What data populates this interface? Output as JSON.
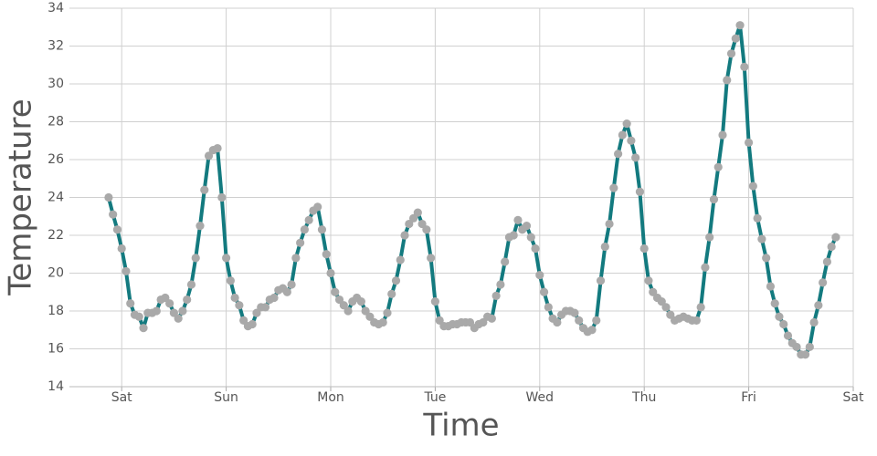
{
  "chart_data": {
    "type": "line",
    "xlabel": "Time",
    "ylabel": "Temperature",
    "x": [
      -3,
      -2,
      -1,
      0,
      1,
      2,
      3,
      4,
      5,
      6,
      7,
      8,
      9,
      10,
      11,
      12,
      13,
      14,
      15,
      16,
      17,
      18,
      19,
      20,
      21,
      22,
      23,
      24,
      25,
      26,
      27,
      28,
      29,
      30,
      31,
      32,
      33,
      34,
      35,
      36,
      37,
      38,
      39,
      40,
      41,
      42,
      43,
      44,
      45,
      46,
      47,
      48,
      49,
      50,
      51,
      52,
      53,
      54,
      55,
      56,
      57,
      58,
      59,
      60,
      61,
      62,
      63,
      64,
      65,
      66,
      67,
      68,
      69,
      70,
      71,
      72,
      73,
      74,
      75,
      76,
      77,
      78,
      79,
      80,
      81,
      82,
      83,
      84,
      85,
      86,
      87,
      88,
      89,
      90,
      91,
      92,
      93,
      94,
      95,
      96,
      97,
      98,
      99,
      100,
      101,
      102,
      103,
      104,
      105,
      106,
      107,
      108,
      109,
      110,
      111,
      112,
      113,
      114,
      115,
      116,
      117,
      118,
      119,
      120,
      121,
      122,
      123,
      124,
      125,
      126,
      127,
      128,
      129,
      130,
      131,
      132,
      133,
      134,
      135,
      136,
      137,
      138,
      139,
      140,
      141,
      142,
      143,
      144,
      145,
      146,
      147,
      148,
      149,
      150,
      151,
      152,
      153,
      154,
      155,
      156,
      157,
      158,
      159,
      160,
      161,
      162,
      163,
      164
    ],
    "values": [
      24.0,
      23.1,
      22.3,
      21.3,
      20.1,
      18.4,
      17.8,
      17.7,
      17.1,
      17.9,
      17.9,
      18.0,
      18.6,
      18.7,
      18.4,
      17.9,
      17.6,
      18.0,
      18.6,
      19.4,
      20.8,
      22.5,
      24.4,
      26.2,
      26.5,
      26.6,
      24.0,
      20.8,
      19.6,
      18.7,
      18.3,
      17.5,
      17.2,
      17.3,
      17.9,
      18.2,
      18.2,
      18.6,
      18.7,
      19.1,
      19.2,
      19.0,
      19.4,
      20.8,
      21.6,
      22.3,
      22.8,
      23.3,
      23.5,
      22.3,
      21.0,
      20.0,
      19.0,
      18.6,
      18.3,
      18.0,
      18.5,
      18.7,
      18.5,
      18.0,
      17.7,
      17.4,
      17.3,
      17.4,
      17.9,
      18.9,
      19.6,
      20.7,
      22.0,
      22.6,
      22.9,
      23.2,
      22.6,
      22.3,
      20.8,
      18.5,
      17.5,
      17.2,
      17.2,
      17.3,
      17.3,
      17.4,
      17.4,
      17.4,
      17.1,
      17.3,
      17.4,
      17.7,
      17.6,
      18.8,
      19.4,
      20.6,
      21.9,
      22.0,
      22.8,
      22.3,
      22.5,
      21.9,
      21.3,
      19.9,
      19.0,
      18.2,
      17.6,
      17.4,
      17.8,
      18.0,
      18.0,
      17.9,
      17.5,
      17.1,
      16.9,
      17.0,
      17.5,
      19.6,
      21.4,
      22.6,
      24.5,
      26.3,
      27.3,
      27.9,
      27.0,
      26.1,
      24.3,
      21.3,
      19.6,
      19.0,
      18.7,
      18.5,
      18.2,
      17.8,
      17.5,
      17.6,
      17.7,
      17.6,
      17.5,
      17.5,
      18.2,
      20.3,
      21.9,
      23.9,
      25.6,
      27.3,
      30.2,
      31.6,
      32.4,
      33.1,
      30.9,
      26.9,
      24.6,
      22.9,
      21.8,
      20.8,
      19.3,
      18.4,
      17.7,
      17.3,
      16.7,
      16.3,
      16.1,
      15.7,
      15.7,
      16.1,
      17.4,
      18.3,
      19.5,
      20.6,
      21.4,
      21.9
    ],
    "color": "#137a7f",
    "marker_color": "#a9a9a9",
    "xlim": [
      -12,
      168
    ],
    "xticks": [
      {
        "value": 0,
        "label": "Sat"
      },
      {
        "value": 24,
        "label": "Sun"
      },
      {
        "value": 48,
        "label": "Mon"
      },
      {
        "value": 72,
        "label": "Tue"
      },
      {
        "value": 96,
        "label": "Wed"
      },
      {
        "value": 120,
        "label": "Thu"
      },
      {
        "value": 144,
        "label": "Fri"
      },
      {
        "value": 168,
        "label": "Sat"
      }
    ],
    "ylim": [
      14,
      34
    ],
    "yticks": [
      14,
      16,
      18,
      20,
      22,
      24,
      26,
      28,
      30,
      32,
      34
    ],
    "grid": true
  }
}
